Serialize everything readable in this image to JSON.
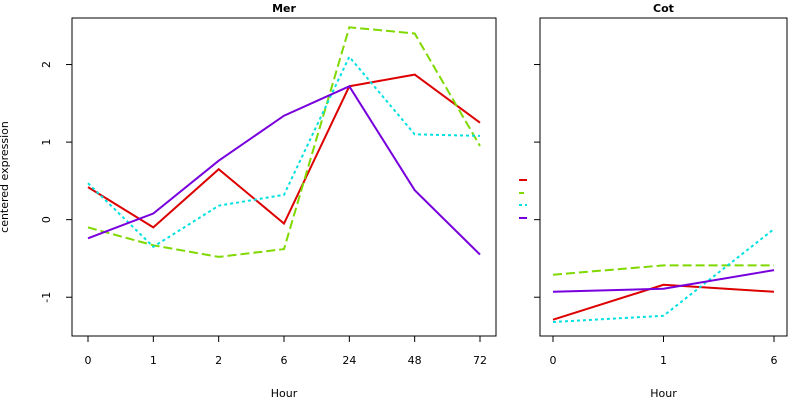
{
  "chart_data": [
    {
      "type": "line",
      "title": "Mer",
      "xlabel": "Hour",
      "ylabel": "centered expression",
      "categories": [
        "0",
        "1",
        "2",
        "6",
        "24",
        "48",
        "72"
      ],
      "ylim": [
        -1.5,
        2.6
      ],
      "yticks": [
        "-1",
        "0",
        "1",
        "2"
      ],
      "series": [
        {
          "color": "#dd0000",
          "dash": "solid",
          "values": [
            0.42,
            -0.1,
            0.65,
            -0.05,
            1.72,
            1.87,
            1.25
          ]
        },
        {
          "color": "#7fd900",
          "dash": "dashed",
          "values": [
            -0.1,
            -0.33,
            -0.48,
            -0.38,
            2.48,
            2.4,
            0.95
          ]
        },
        {
          "color": "#00e0e0",
          "dash": "dotted",
          "values": [
            0.47,
            -0.35,
            0.18,
            0.32,
            2.1,
            1.1,
            1.08
          ]
        },
        {
          "color": "#7700dd",
          "dash": "solid",
          "values": [
            -0.24,
            0.08,
            0.76,
            1.34,
            1.72,
            0.38,
            -0.45
          ]
        }
      ]
    },
    {
      "type": "line",
      "title": "Cot",
      "xlabel": "Hour",
      "ylabel": "",
      "categories": [
        "0",
        "1",
        "6"
      ],
      "ylim": [
        -1.5,
        2.6
      ],
      "series": [
        {
          "color": "#dd0000",
          "dash": "solid",
          "values": [
            -1.29,
            -0.84,
            -0.93
          ]
        },
        {
          "color": "#7fd900",
          "dash": "dashed",
          "values": [
            -0.71,
            -0.59,
            -0.59
          ]
        },
        {
          "color": "#00e0e0",
          "dash": "dotted",
          "values": [
            -1.32,
            -1.24,
            -0.12
          ]
        },
        {
          "color": "#7700dd",
          "dash": "solid",
          "values": [
            -0.93,
            -0.89,
            -0.65
          ]
        }
      ]
    }
  ]
}
